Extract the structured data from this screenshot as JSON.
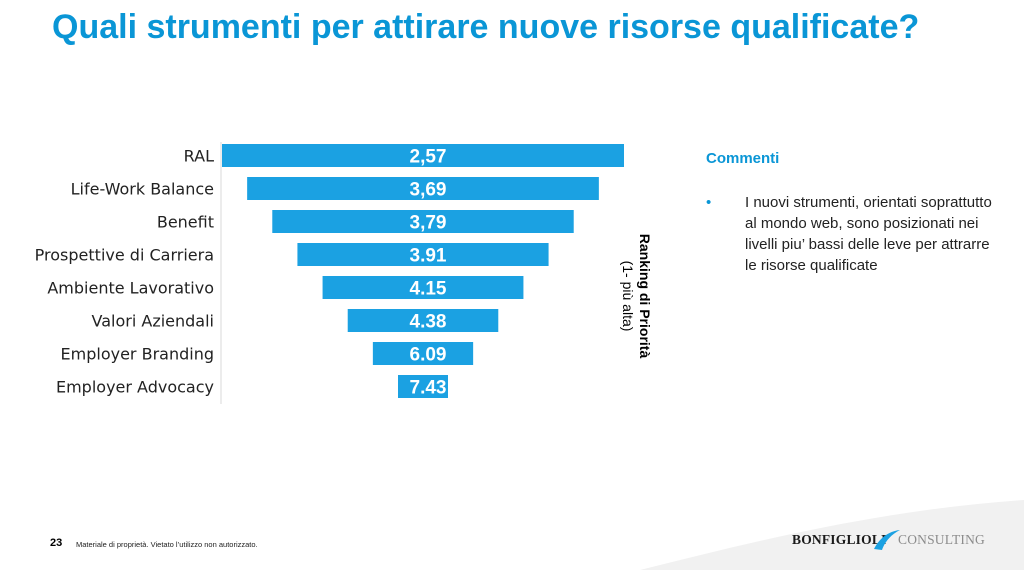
{
  "slide": {
    "title": "Quali strumenti per attirare nuove risorse qualificate?",
    "page_number": "23",
    "footer_note": "Materiale di proprietà. Vietato l’utilizzo non autorizzato."
  },
  "comments": {
    "heading": "Commenti",
    "bullet": "•",
    "text": "I nuovi strumenti, orientati soprattutto al mondo web, sono posizionati nei livelli piu’ bassi delle leve per attrarre le risorse qualificate"
  },
  "logo": {
    "left": "BONFIGLIOLI",
    "right": "CONSULTING"
  },
  "colors": {
    "title": "#0a96d6",
    "bar": "#1ba1e2",
    "footer_wave": "#efefef"
  },
  "chart_data": {
    "type": "bar",
    "orientation": "horizontal",
    "style": "funnel (bars centered, narrowing downward)",
    "categories": [
      "RAL",
      "Life-Work Balance",
      "Benefit",
      "Prospettive di Carriera",
      "Ambiente Lavorativo",
      "Valori Aziendali",
      "Employer Branding",
      "Employer Advocacy"
    ],
    "values": [
      2.57,
      3.69,
      3.79,
      3.91,
      4.15,
      4.38,
      6.09,
      7.43
    ],
    "value_labels": [
      "2,57",
      "3,69",
      "3,79",
      "3.91",
      "4.15",
      "4.38",
      "6.09",
      "7.43"
    ],
    "ylabel": "Ranking di Priorità",
    "ylabel_sub": "(1- più alta)",
    "legend": "none",
    "grid": false
  }
}
